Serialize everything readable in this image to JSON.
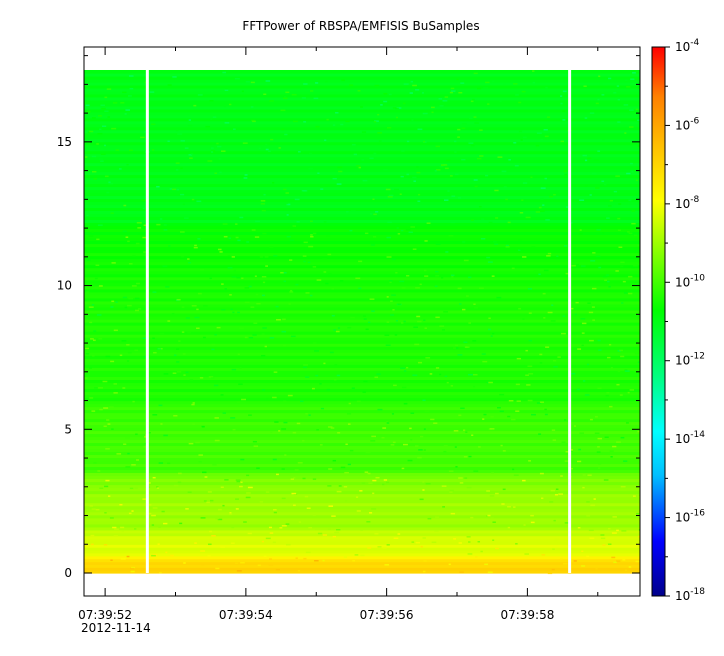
{
  "chart_data": {
    "type": "heatmap",
    "title": "FFTPower of RBSPA/EMFISIS  BuSamples",
    "xlabel": "",
    "ylabel": "",
    "x_range": [
      "07:39:51.7",
      "07:39:59.6"
    ],
    "y_range": [
      -0.8,
      18.3
    ],
    "x_ticks": [
      "07:39:52",
      "07:39:54",
      "07:39:56",
      "07:39:58"
    ],
    "x_date_label": "2012-11-14",
    "y_ticks": [
      0,
      5,
      10,
      15
    ],
    "data_y_range": [
      0,
      17.5
    ],
    "gaps_at": [
      "07:39:52.6",
      "07:39:58.6"
    ],
    "colorbar": {
      "scale": "log",
      "range": [
        1e-18,
        0.0001
      ],
      "tick_labels": [
        {
          "base": "10",
          "exp": "-4"
        },
        {
          "base": "10",
          "exp": "-6"
        },
        {
          "base": "10",
          "exp": "-8"
        },
        {
          "base": "10",
          "exp": "-10"
        },
        {
          "base": "10",
          "exp": "-12"
        },
        {
          "base": "10",
          "exp": "-14"
        },
        {
          "base": "10",
          "exp": "-16"
        },
        {
          "base": "10",
          "exp": "-18"
        }
      ],
      "colors": [
        "#00008b",
        "#0000ff",
        "#00bfff",
        "#00ffff",
        "#00ff80",
        "#00ff00",
        "#80ff00",
        "#ffff00",
        "#ffbf00",
        "#ff8000",
        "#ff0000"
      ]
    },
    "bands": [
      {
        "y_from": 0,
        "y_to": 0.6,
        "log_power": -7
      },
      {
        "y_from": 0.6,
        "y_to": 1.5,
        "log_power": -8.3
      },
      {
        "y_from": 1.5,
        "y_to": 3.5,
        "log_power": -9
      },
      {
        "y_from": 3.5,
        "y_to": 6,
        "log_power": -10
      },
      {
        "y_from": 6,
        "y_to": 12.2,
        "log_power": -10.4
      },
      {
        "y_from": 12.2,
        "y_to": 17.5,
        "log_power": -11
      }
    ]
  }
}
